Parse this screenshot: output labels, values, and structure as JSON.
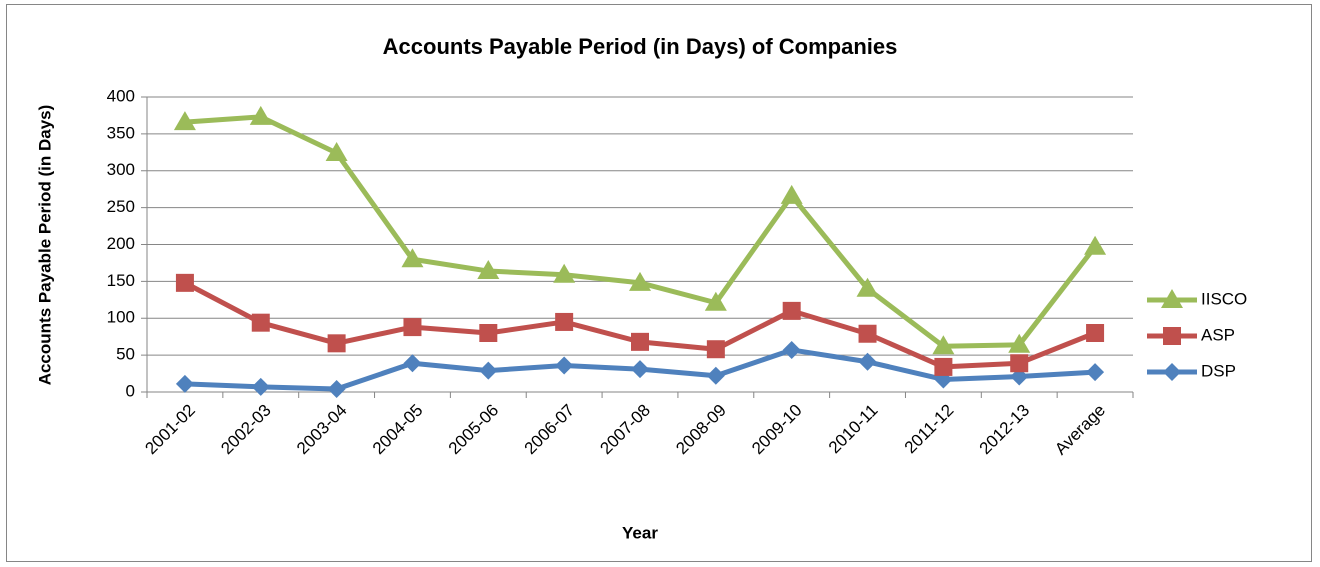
{
  "chart_data": {
    "type": "line",
    "title": "Accounts Payable Period (in Days) of Companies",
    "x_label": "Year",
    "y_label": "Accounts Payable Period (in Days)",
    "categories": [
      "2001-02",
      "2002-03",
      "2003-04",
      "2004-05",
      "2005-06",
      "2006-07",
      "2007-08",
      "2008-09",
      "2009-10",
      "2010-11",
      "2011-12",
      "2012-13",
      "Average"
    ],
    "series": [
      {
        "name": "IISCO",
        "color": "#9bbb59",
        "marker": "triangle",
        "values": [
          366,
          373,
          324,
          180,
          164,
          159,
          148,
          121,
          266,
          140,
          62,
          64,
          197
        ]
      },
      {
        "name": "ASP",
        "color": "#c0504d",
        "marker": "square",
        "values": [
          148,
          94,
          66,
          88,
          80,
          95,
          68,
          58,
          110,
          79,
          34,
          39,
          80
        ]
      },
      {
        "name": "DSP",
        "color": "#4f81bd",
        "marker": "diamond",
        "values": [
          11,
          7,
          4,
          39,
          29,
          36,
          31,
          22,
          57,
          41,
          17,
          21,
          27
        ]
      }
    ],
    "ylim": [
      0,
      400
    ],
    "yticks": [
      0,
      50,
      100,
      150,
      200,
      250,
      300,
      350,
      400
    ],
    "grid": true,
    "legend": "right"
  }
}
